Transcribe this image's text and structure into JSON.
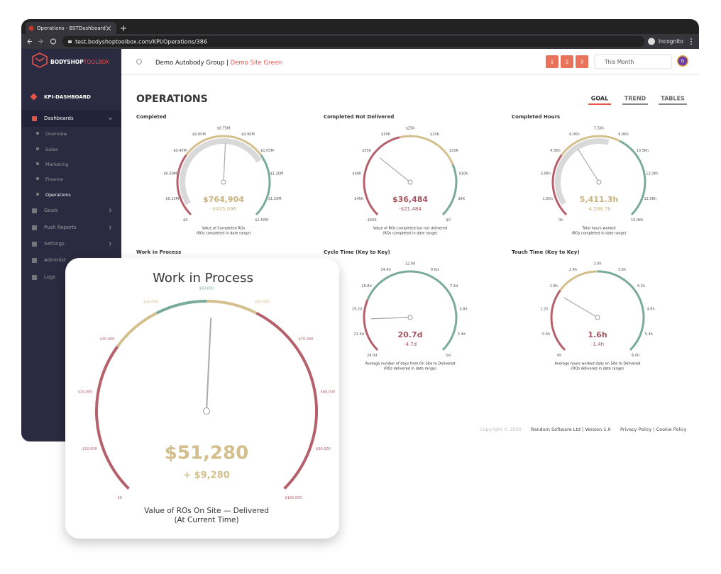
{
  "browser": {
    "tab_title": "Operations - BSTDashboard",
    "url": "test.bodyshoptoolbox.com/KPI/Operations/386",
    "incognito": "Incognito"
  },
  "sidebar": {
    "logo_bold": "BODYSHOP",
    "logo_light": "TOOLBOX",
    "section": "KPI-DASHBOARD",
    "menu": [
      "Dashboards",
      "Overview",
      "Sales",
      "Marketing",
      "Finance",
      "Operations",
      "Goals",
      "Push Reports",
      "Settings",
      "Administ",
      "Logs"
    ]
  },
  "header": {
    "group": "Demo Autobody Group",
    "separator": "|",
    "site": "Demo Site Green",
    "buttons": [
      "1",
      "2",
      "3"
    ],
    "period": "This Month",
    "avatar": "G"
  },
  "page": {
    "title": "OPERATIONS",
    "tabs": [
      "GOAL",
      "TREND",
      "TABLES"
    ]
  },
  "gauges": [
    {
      "title": "Completed",
      "ticks": [
        "$0",
        "$0.15M",
        "$0.30M",
        "$0.45M",
        "$0.60M",
        "$0.75M",
        "$0.90M",
        "$1.05M",
        "$1.20M",
        "$1.35M",
        "$1.50M"
      ],
      "value": "$764,904",
      "delta": "-$435,096",
      "caption": [
        "Value of Completed ROs",
        "(ROs completed in date range)"
      ]
    },
    {
      "title": "Completed Not Delivered",
      "ticks": [
        "$55K",
        "$45K",
        "$40K",
        "$35K",
        "$30K",
        "$25K",
        "$20K",
        "$15K",
        "$10K",
        "$5K",
        "$0"
      ],
      "value": "$36,484",
      "delta": "-$21,484",
      "caption": [
        "Value of ROs completed but not delivered",
        "(ROs completed in date range)"
      ]
    },
    {
      "title": "Completed Hours",
      "ticks": [
        "0h",
        "1.5Kh",
        "3.0Kh",
        "4.5Kh",
        "6.0Kh",
        "7.5Kh",
        "9.0Kh",
        "10.5Kh",
        "12.0Kh",
        "13.5Kh",
        "15.0Kh"
      ],
      "value": "5,411.3h",
      "delta": "-4,588.7h",
      "caption": [
        "Total hours worked",
        "(ROs completed in date range)"
      ]
    },
    {
      "title": "Work in Process"
    },
    {
      "title": "Cycle Time (Key to Key)",
      "ticks": [
        "24.0d",
        "21.6d",
        "19.2d",
        "16.8d",
        "14.4d",
        "12.0d",
        "9.6d",
        "7.2d",
        "4.8d",
        "2.4d",
        "0d"
      ],
      "value": "20.7d",
      "delta": "-4.7d",
      "caption": [
        "Average number of days from On Site to Delivered",
        "(ROs delivered in date range)"
      ]
    },
    {
      "title": "Touch Time (Key to Key)",
      "ticks": [
        "0h",
        "0.6h",
        "1.2h",
        "1.8h",
        "2.4h",
        "3.0h",
        "3.6h",
        "4.2h",
        "4.8h",
        "5.4h",
        "6.0h"
      ],
      "value": "1.6h",
      "delta": "-1.4h",
      "caption": [
        "Average hours worked daily on Site to Delivered",
        "(ROs delivered in date range)"
      ]
    }
  ],
  "popup": {
    "title": "Work in Process",
    "ticks": [
      "$0",
      "$10,000",
      "$20,000",
      "$30,000",
      "$40,000",
      "$50,000",
      "$60,000",
      "$70,000",
      "$80,000",
      "$90,000",
      "$100,000"
    ],
    "value": "$51,280",
    "delta": "+ $9,280",
    "caption": [
      "Value of ROs On Site — Delivered",
      "(At Current Time)"
    ]
  },
  "footer": {
    "copyright": "Copyright © 2020 -",
    "company": "Random Software Ltd | Version 1.0",
    "links": "Privacy Policy | Cookie Policy"
  }
}
